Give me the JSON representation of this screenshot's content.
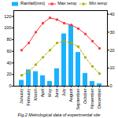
{
  "chart_data": {
    "type": "bar",
    "title": "Fig.2 Metrological data of experimental site",
    "categories": [
      "January",
      "February",
      "March",
      "April",
      "May",
      "June",
      "July",
      "August",
      "September",
      "October",
      "November",
      "December"
    ],
    "series": [
      {
        "name": "Rainfall(mm)",
        "type": "bar",
        "color": "#1ab2ff",
        "values": [
          10,
          28,
          25,
          18,
          8,
          30,
          90,
          105,
          58,
          22,
          8,
          4
        ]
      },
      {
        "name": "Max temp",
        "type": "line",
        "axis": "y2",
        "color": "#ff3333",
        "marker": "square",
        "line_style": "solid",
        "values": [
          20,
          24,
          30,
          35,
          38,
          37,
          35,
          34,
          32,
          29,
          25,
          21
        ]
      },
      {
        "name": "Min temp",
        "type": "line",
        "axis": "y2",
        "color": "#aaaa00",
        "marker": "square",
        "line_style": "dashed",
        "values": [
          6,
          8,
          12,
          16,
          20,
          24,
          25,
          24,
          22,
          16,
          11,
          7
        ]
      }
    ],
    "ylim": [
      0,
      130
    ],
    "yticks": [
      0,
      20,
      40,
      60,
      80,
      100,
      120
    ],
    "y2lim": [
      0,
      42
    ],
    "y2ticks": [
      0,
      10,
      20,
      30,
      40
    ],
    "legend": "top",
    "grid": false
  }
}
